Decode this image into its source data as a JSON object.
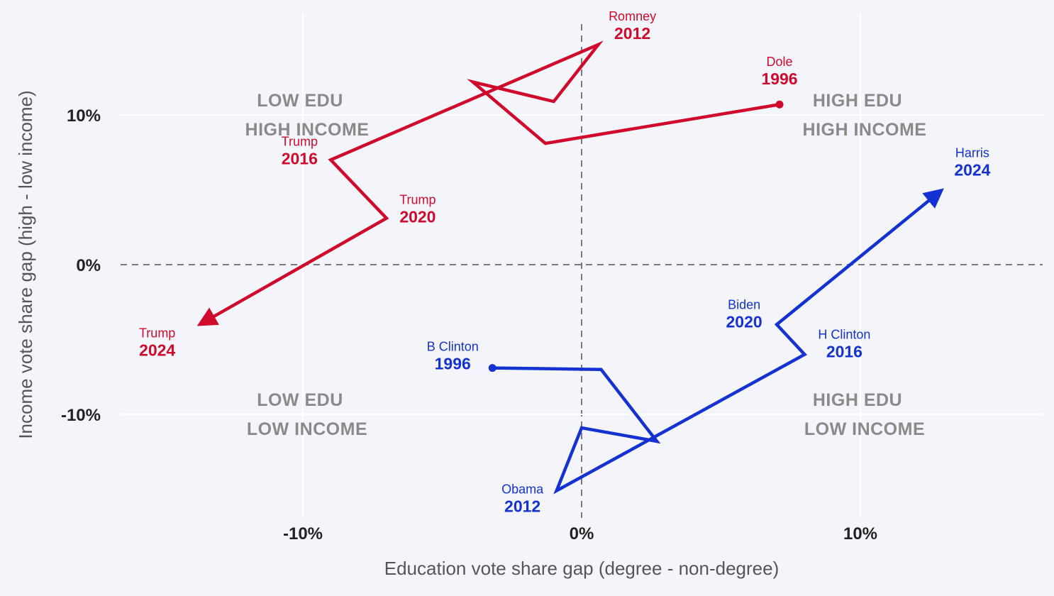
{
  "chart_data": {
    "type": "line",
    "xlabel": "Education vote share gap (degree - non-degree)",
    "ylabel": "Income vote share gap (high - low income)",
    "xlim": [
      -16.5,
      16.5
    ],
    "ylim": [
      -16.5,
      17
    ],
    "x_ticks": [
      {
        "value": -10,
        "label": "-10%"
      },
      {
        "value": 0,
        "label": "0%"
      },
      {
        "value": 10,
        "label": "10%"
      }
    ],
    "y_ticks": [
      {
        "value": 10,
        "label": "10%"
      },
      {
        "value": 0,
        "label": "0%"
      },
      {
        "value": -10,
        "label": "-10%"
      }
    ],
    "grid": true,
    "zero_lines": "dashed",
    "quadrants": [
      {
        "lines": [
          "LOW EDU",
          "HIGH INCOME"
        ],
        "x": -10,
        "y": 10
      },
      {
        "lines": [
          "HIGH EDU",
          "HIGH INCOME"
        ],
        "x": 10,
        "y": 10
      },
      {
        "lines": [
          "LOW EDU",
          "LOW INCOME"
        ],
        "x": -10,
        "y": -10
      },
      {
        "lines": [
          "HIGH EDU",
          "LOW INCOME"
        ],
        "x": 10,
        "y": -10
      }
    ],
    "series": [
      {
        "color": "#cf0a2c",
        "points": [
          {
            "x": 7.1,
            "y": 10.7,
            "name": "Dole",
            "year": "1996"
          },
          {
            "x": -1.3,
            "y": 8.1
          },
          {
            "x": -3.9,
            "y": 12.2
          },
          {
            "x": -1.0,
            "y": 10.9
          },
          {
            "x": 0.6,
            "y": 14.7,
            "name": "Romney",
            "year": "2012"
          },
          {
            "x": -9.0,
            "y": 7.0,
            "name": "Trump",
            "year": "2016"
          },
          {
            "x": -7.0,
            "y": 3.1,
            "name": "Trump",
            "year": "2020"
          },
          {
            "x": -13.8,
            "y": -4.1,
            "name": "Trump",
            "year": "2024"
          }
        ]
      },
      {
        "color": "#1432d2",
        "points": [
          {
            "x": -3.2,
            "y": -6.9,
            "name": "B Clinton",
            "year": "1996"
          },
          {
            "x": 0.7,
            "y": -7.0
          },
          {
            "x": 2.7,
            "y": -11.8
          },
          {
            "x": 0.0,
            "y": -10.9
          },
          {
            "x": -0.9,
            "y": -15.1,
            "name": "Obama",
            "year": "2012"
          },
          {
            "x": 8.0,
            "y": -6.0,
            "name": "H Clinton",
            "year": "2016"
          },
          {
            "x": 7.0,
            "y": -4.0,
            "name": "Biden",
            "year": "2020"
          },
          {
            "x": 13.0,
            "y": 5.1,
            "name": "Harris",
            "year": "2024"
          }
        ]
      }
    ]
  }
}
